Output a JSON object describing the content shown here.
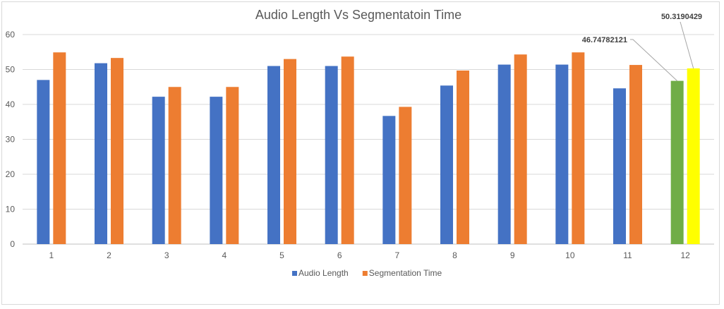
{
  "chart_data": {
    "type": "bar",
    "title": "Audio Length Vs Segmentatoin Time",
    "categories": [
      "1",
      "2",
      "3",
      "4",
      "5",
      "6",
      "7",
      "8",
      "9",
      "10",
      "11",
      "12"
    ],
    "ylim": [
      0,
      60
    ],
    "yticks": [
      0,
      10,
      20,
      30,
      40,
      50,
      60
    ],
    "grid": true,
    "legend_position": "bottom",
    "series": [
      {
        "name": "Audio Length",
        "color": "#4472c4",
        "values": [
          47,
          51.8,
          42.2,
          42.2,
          51,
          51,
          36.7,
          45.4,
          51.4,
          51.4,
          44.6,
          46.74782121
        ]
      },
      {
        "name": "Segmentation Time",
        "color": "#ed7d31",
        "values": [
          54.9,
          53.3,
          45,
          45,
          53,
          53.7,
          39.3,
          49.7,
          54.3,
          54.9,
          51.3,
          50.3190429
        ]
      }
    ],
    "highlight": {
      "category_index": 11,
      "colors": [
        "#70ad47",
        "#ffff00"
      ],
      "labels": [
        "46.74782121",
        "50.3190429"
      ]
    }
  }
}
